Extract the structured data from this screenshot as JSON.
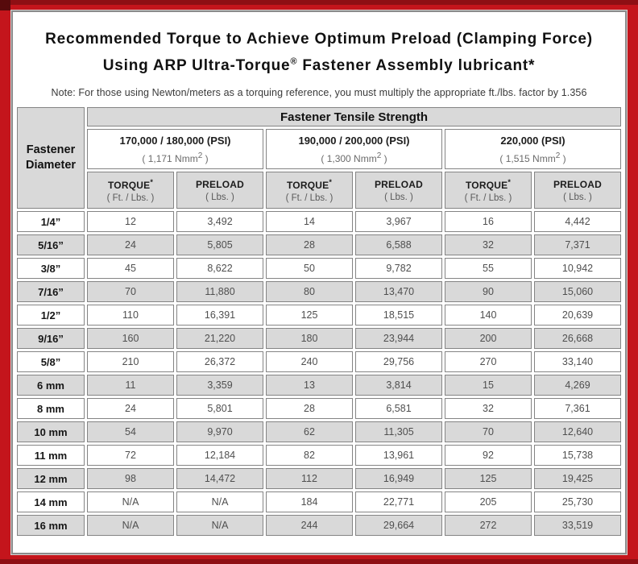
{
  "frame": {
    "red": "#C4151C",
    "dark_red_edge": "#8E0F14",
    "shaded_cell": "#D9D9D9"
  },
  "title": {
    "line1": "Recommended Torque to Achieve Optimum Preload (Clamping Force)",
    "line2_pre": "Using ARP Ultra-Torque",
    "line2_sup": "®",
    "line2_post": " Fastener Assembly lubricant*"
  },
  "note": "Note: For those using Newton/meters as a torquing reference, you must multiply the appropriate ft./lbs. factor by 1.356",
  "table": {
    "corner_header": "Fastener Diameter",
    "group_header": "Fastener Tensile Strength",
    "strength_columns": [
      {
        "psi": "170,000 / 180,000 (PSI)",
        "nmm_pre": "( 1,171 Nmm",
        "nmm_sup": "2",
        "nmm_post": " )"
      },
      {
        "psi": "190,000 / 200,000 (PSI)",
        "nmm_pre": "( 1,300 Nmm",
        "nmm_sup": "2",
        "nmm_post": " )"
      },
      {
        "psi": "220,000 (PSI)",
        "nmm_pre": "( 1,515 Nmm",
        "nmm_sup": "2",
        "nmm_post": " )"
      }
    ],
    "sub_headers": {
      "torque_label": "TORQUE",
      "torque_star": "*",
      "torque_unit": "( Ft. / Lbs. )",
      "preload_label": "PRELOAD",
      "preload_unit": "( Lbs. )"
    },
    "rows": [
      {
        "label": "1/4”",
        "values": [
          "12",
          "3,492",
          "14",
          "3,967",
          "16",
          "4,442"
        ]
      },
      {
        "label": "5/16”",
        "values": [
          "24",
          "5,805",
          "28",
          "6,588",
          "32",
          "7,371"
        ]
      },
      {
        "label": "3/8”",
        "values": [
          "45",
          "8,622",
          "50",
          "9,782",
          "55",
          "10,942"
        ]
      },
      {
        "label": "7/16”",
        "values": [
          "70",
          "11,880",
          "80",
          "13,470",
          "90",
          "15,060"
        ]
      },
      {
        "label": "1/2”",
        "values": [
          "110",
          "16,391",
          "125",
          "18,515",
          "140",
          "20,639"
        ]
      },
      {
        "label": "9/16”",
        "values": [
          "160",
          "21,220",
          "180",
          "23,944",
          "200",
          "26,668"
        ]
      },
      {
        "label": "5/8”",
        "values": [
          "210",
          "26,372",
          "240",
          "29,756",
          "270",
          "33,140"
        ]
      },
      {
        "label": "6 mm",
        "values": [
          "11",
          "3,359",
          "13",
          "3,814",
          "15",
          "4,269"
        ]
      },
      {
        "label": "8 mm",
        "values": [
          "24",
          "5,801",
          "28",
          "6,581",
          "32",
          "7,361"
        ]
      },
      {
        "label": "10 mm",
        "values": [
          "54",
          "9,970",
          "62",
          "11,305",
          "70",
          "12,640"
        ]
      },
      {
        "label": "11 mm",
        "values": [
          "72",
          "12,184",
          "82",
          "13,961",
          "92",
          "15,738"
        ]
      },
      {
        "label": "12 mm",
        "values": [
          "98",
          "14,472",
          "112",
          "16,949",
          "125",
          "19,425"
        ]
      },
      {
        "label": "14 mm",
        "values": [
          "N/A",
          "N/A",
          "184",
          "22,771",
          "205",
          "25,730"
        ]
      },
      {
        "label": "16 mm",
        "values": [
          "N/A",
          "N/A",
          "244",
          "29,664",
          "272",
          "33,519"
        ]
      }
    ]
  }
}
